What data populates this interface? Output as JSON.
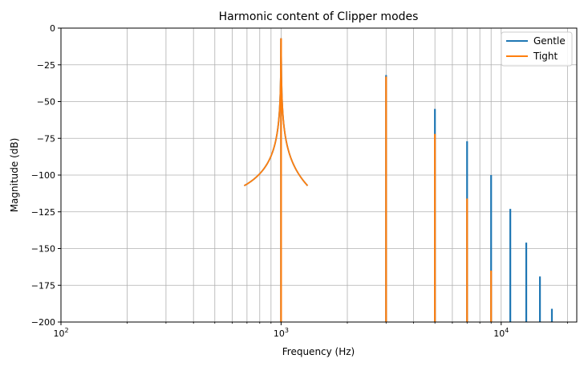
{
  "chart_data": {
    "type": "line",
    "title": "Harmonic content of Clipper modes",
    "xlabel": "Frequency (Hz)",
    "ylabel": "Magnitude (dB)",
    "xscale": "log",
    "xlim": [
      100,
      22050
    ],
    "ylim": [
      -200,
      0
    ],
    "grid": "major-and-minor",
    "legend_position": "top-right",
    "x_ticks": [
      {
        "value": 100,
        "base": "10",
        "exp": "2"
      },
      {
        "value": 1000,
        "base": "10",
        "exp": "3"
      },
      {
        "value": 10000,
        "base": "10",
        "exp": "4"
      }
    ],
    "y_ticks": [
      {
        "value": 0,
        "label": "0"
      },
      {
        "value": -25,
        "label": "−25"
      },
      {
        "value": -50,
        "label": "−50"
      },
      {
        "value": -75,
        "label": "−75"
      },
      {
        "value": -100,
        "label": "−100"
      },
      {
        "value": -125,
        "label": "−125"
      },
      {
        "value": -150,
        "label": "−150"
      },
      {
        "value": -175,
        "label": "−175"
      },
      {
        "value": -200,
        "label": "−200"
      }
    ],
    "series": [
      {
        "name": "Gentle",
        "color": "#1f77b4",
        "peaks": [
          {
            "x": 1000,
            "y": -7
          },
          {
            "x": 3000,
            "y": -32
          },
          {
            "x": 5000,
            "y": -55
          },
          {
            "x": 7000,
            "y": -77
          },
          {
            "x": 9000,
            "y": -100
          },
          {
            "x": 11000,
            "y": -123
          },
          {
            "x": 13000,
            "y": -146
          },
          {
            "x": 15000,
            "y": -169
          },
          {
            "x": 17000,
            "y": -191
          }
        ]
      },
      {
        "name": "Tight",
        "color": "#ff7f0e",
        "peaks": [
          {
            "x": 1000,
            "y": -7
          },
          {
            "x": 3000,
            "y": -33
          },
          {
            "x": 5000,
            "y": -72
          },
          {
            "x": 7000,
            "y": -116
          },
          {
            "x": 9000,
            "y": -165
          }
        ]
      }
    ]
  }
}
